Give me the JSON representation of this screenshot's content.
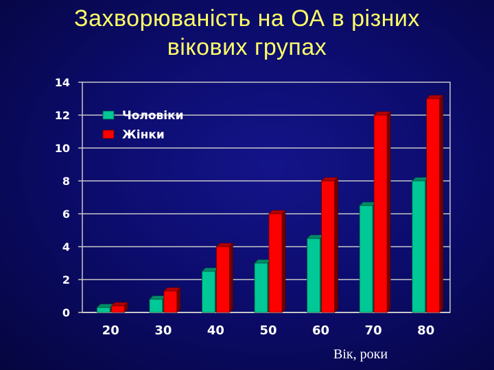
{
  "chart_data": {
    "type": "bar",
    "title": "Захворюваність на ОА в різних вікових групах",
    "title_lines": [
      "Захворюваність на ОА в різних",
      "вікових групах"
    ],
    "xlabel": "Вік, роки",
    "ylabel": "",
    "categories": [
      "20",
      "30",
      "40",
      "50",
      "60",
      "70",
      "80"
    ],
    "series": [
      {
        "name": "Чоловіки",
        "color": "#00c896",
        "values": [
          0.3,
          0.8,
          2.5,
          3.0,
          4.5,
          6.5,
          8.0
        ]
      },
      {
        "name": "Жінки",
        "color": "#ff0000",
        "values": [
          0.4,
          1.3,
          4.0,
          6.0,
          8.0,
          12.0,
          13.0
        ]
      }
    ],
    "ylim": [
      0,
      14
    ],
    "yticks": [
      "0",
      "2",
      "4",
      "6",
      "8",
      "10",
      "12",
      "14"
    ],
    "grid": true,
    "legend": "top-left"
  },
  "colors": {
    "background": "#0c0c6e",
    "title": "#ffff66",
    "text": "#ffffff",
    "gridline": "#c8c8c8"
  }
}
